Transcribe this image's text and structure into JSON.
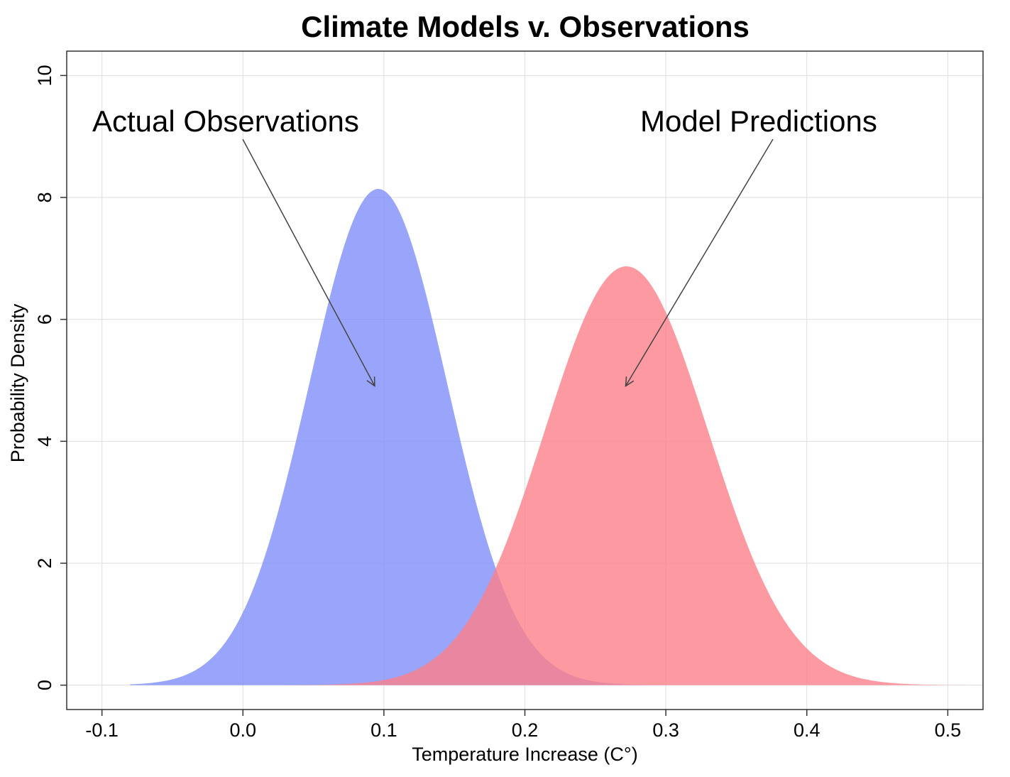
{
  "chart_data": {
    "type": "area",
    "title": "Climate Models v. Observations",
    "xlabel": "Temperature Increase (C°)",
    "ylabel": "Probability Density",
    "xlim": [
      -0.125,
      0.525
    ],
    "ylim": [
      -0.4,
      10.4
    ],
    "x_ticks": [
      "-0.1",
      "0.0",
      "0.1",
      "0.2",
      "0.3",
      "0.4",
      "0.5"
    ],
    "y_ticks": [
      "0",
      "2",
      "4",
      "6",
      "8",
      "10"
    ],
    "x_tick_values": [
      -0.1,
      0.0,
      0.1,
      0.2,
      0.3,
      0.4,
      0.5
    ],
    "y_tick_values": [
      0,
      2,
      4,
      6,
      8,
      10
    ],
    "grid": true,
    "series": [
      {
        "color": "#7f8ff9",
        "opacity": 0.8,
        "distribution": "normal",
        "mean": 0.096,
        "sd": 0.049,
        "peak_density": 8.14,
        "x_range": [
          -0.08,
          0.39
        ]
      },
      {
        "color": "#fc7f8a",
        "opacity": 0.8,
        "distribution": "normal",
        "mean": 0.272,
        "sd": 0.058,
        "peak_density": 6.87,
        "x_range": [
          0.0,
          0.525
        ]
      }
    ],
    "annotations": [
      {
        "text": "Actual Observations",
        "arrow_to": [
          0.096,
          5.0
        ]
      },
      {
        "text": "Model Predictions",
        "arrow_to": [
          0.272,
          5.0
        ]
      }
    ]
  }
}
